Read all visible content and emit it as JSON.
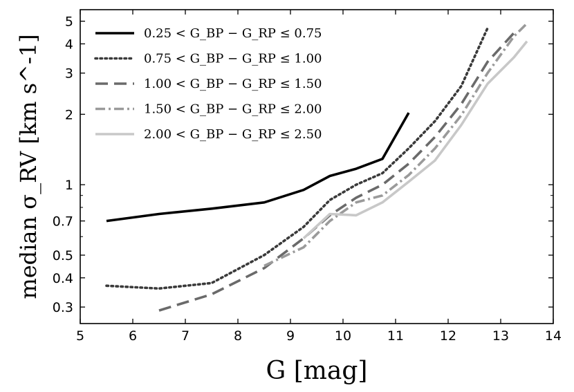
{
  "chart_data": {
    "type": "line",
    "xlabel": "G [mag]",
    "ylabel": "median σ_RV [km s^-1]",
    "x_ticks": [
      5,
      6,
      7,
      8,
      9,
      10,
      11,
      12,
      13,
      14
    ],
    "y_ticks": [
      0.3,
      0.4,
      0.5,
      0.7,
      1,
      2,
      3,
      4,
      5
    ],
    "y_tick_labels": [
      "0.3",
      "0.4",
      "0.5",
      "0.7",
      "1",
      "2",
      "3",
      "4",
      "5"
    ],
    "xlim": [
      5,
      14
    ],
    "ylim": [
      0.255,
      5.6
    ],
    "y_scale": "log",
    "legend_location": "upper-left",
    "series": [
      {
        "name": "0.25 < G_BP − G_RP ≤ 0.75",
        "style": "solid",
        "color": "#000000",
        "x": [
          5.5,
          6.5,
          7.5,
          8.5,
          9.25,
          9.75,
          10.25,
          10.75,
          11.25
        ],
        "y": [
          0.7,
          0.75,
          0.79,
          0.84,
          0.95,
          1.09,
          1.17,
          1.29,
          2.03
        ]
      },
      {
        "name": "0.75 < G_BP − G_RP ≤ 1.00",
        "style": "dotted",
        "color": "#3a3a3a",
        "x": [
          5.5,
          6.5,
          7.5,
          8.5,
          9.25,
          9.75,
          10.25,
          10.75,
          11.25,
          11.75,
          12.25,
          12.75
        ],
        "y": [
          0.37,
          0.36,
          0.38,
          0.5,
          0.66,
          0.86,
          1.0,
          1.12,
          1.43,
          1.87,
          2.64,
          4.67
        ]
      },
      {
        "name": "1.00 < G_BP − G_RP ≤ 1.50",
        "style": "dashed",
        "color": "#6a6a6a",
        "x": [
          6.5,
          7.5,
          8.5,
          9.25,
          9.75,
          10.25,
          10.75,
          11.25,
          11.75,
          12.25,
          12.75,
          13.25
        ],
        "y": [
          0.29,
          0.34,
          0.44,
          0.59,
          0.74,
          0.88,
          1.0,
          1.23,
          1.6,
          2.21,
          3.35,
          4.45
        ]
      },
      {
        "name": "1.50 < G_BP − G_RP ≤ 2.00",
        "style": "dashdot",
        "color": "#9a9a9a",
        "x": [
          8.5,
          9.25,
          9.75,
          10.25,
          10.75,
          11.25,
          11.75,
          12.25,
          12.75,
          13.25,
          13.5
        ],
        "y": [
          0.45,
          0.54,
          0.7,
          0.84,
          0.9,
          1.1,
          1.43,
          1.98,
          3.0,
          4.3,
          4.89
        ]
      },
      {
        "name": "2.00 < G_BP − G_RP ≤ 2.50",
        "style": "solid",
        "color": "#c8c8c8",
        "x": [
          9.25,
          9.75,
          10.25,
          10.75,
          11.25,
          11.75,
          12.25,
          12.75,
          13.25,
          13.5
        ],
        "y": [
          0.59,
          0.75,
          0.74,
          0.84,
          1.03,
          1.27,
          1.8,
          2.7,
          3.5,
          4.1
        ]
      }
    ]
  }
}
